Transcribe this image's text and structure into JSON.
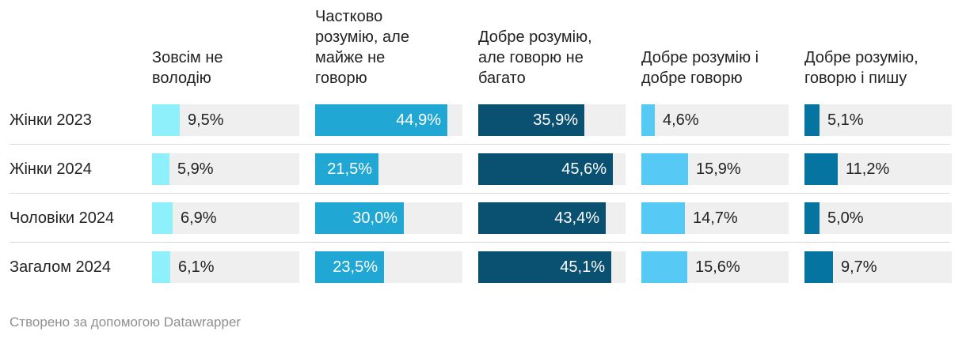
{
  "chart_data": {
    "type": "bar",
    "title": "",
    "xlim": [
      0,
      50
    ],
    "categories": [
      "Жінки 2023",
      "Жінки 2024",
      "Чоловіки 2024",
      "Загалом 2024"
    ],
    "series": [
      {
        "name": "Зовсім не\nволодію",
        "color": "#8ef0fb",
        "values": [
          9.5,
          5.9,
          6.9,
          6.1
        ],
        "labels": [
          "9,5%",
          "5,9%",
          "6,9%",
          "6,1%"
        ]
      },
      {
        "name": "Частково\nрозумію, але\nмайже не\nговорю",
        "color": "#20a7d3",
        "values": [
          44.9,
          21.5,
          30.0,
          23.5
        ],
        "labels": [
          "44,9%",
          "21,5%",
          "30,0%",
          "23,5%"
        ]
      },
      {
        "name": "Добре розумію,\nале говорю не\nбагато",
        "color": "#0a5171",
        "values": [
          35.9,
          45.6,
          43.4,
          45.1
        ],
        "labels": [
          "35,9%",
          "45,6%",
          "43,4%",
          "45,1%"
        ]
      },
      {
        "name": "Добре розумію і\nдобре говорю",
        "color": "#57c9f5",
        "values": [
          4.6,
          15.9,
          14.7,
          15.6
        ],
        "labels": [
          "4,6%",
          "15,9%",
          "14,7%",
          "15,6%"
        ]
      },
      {
        "name": "Добре розумію,\nговорю і пишу",
        "color": "#0574a0",
        "values": [
          5.1,
          11.2,
          5.0,
          9.7
        ],
        "labels": [
          "5,1%",
          "11,2%",
          "5,0%",
          "9,7%"
        ]
      }
    ]
  },
  "footer": "Створено за допомогою Datawrapper"
}
